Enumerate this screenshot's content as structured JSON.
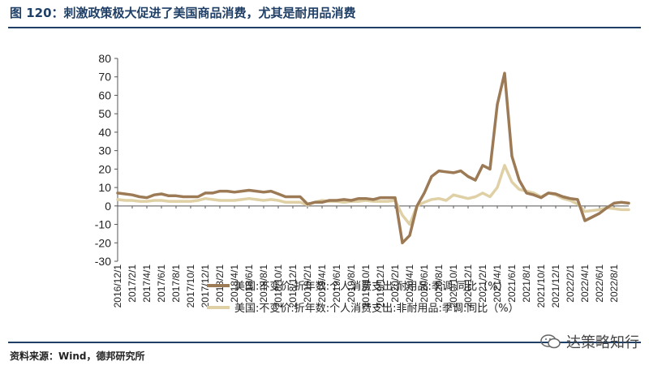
{
  "title": "图 120：刺激政策极大促进了美国商品消费，尤其是耐用品消费",
  "source": "资料来源：Wind，德邦研究所",
  "watermark": "达策略知行",
  "chart_data": {
    "type": "line",
    "ylim": [
      -30,
      80
    ],
    "yticks": [
      -30,
      -20,
      -10,
      0,
      10,
      20,
      30,
      40,
      50,
      60,
      70,
      80
    ],
    "xlim": [
      "2016-12",
      "2022-10"
    ],
    "xtick_labels": [
      "2016/12/1",
      "2017/2/1",
      "2017/4/1",
      "2017/6/1",
      "2017/8/1",
      "2017/10/1",
      "2017/12/1",
      "2018/2/1",
      "2018/4/1",
      "2018/6/1",
      "2018/8/1",
      "2018/10/1",
      "2018/12/1",
      "2019/2/1",
      "2019/4/1",
      "2019/6/1",
      "2019/8/1",
      "2019/10/1",
      "2019/12/1",
      "2020/2/1",
      "2020/4/1",
      "2020/6/1",
      "2020/8/1",
      "2020/10/1",
      "2020/12/1",
      "2021/2/1",
      "2021/4/1",
      "2021/6/1",
      "2021/8/1",
      "2021/10/1",
      "2021/12/1",
      "2022/2/1",
      "2022/4/1",
      "2022/6/1",
      "2022/8/1"
    ],
    "legend_position": "bottom",
    "series": [
      {
        "name": "美国:不变价:折年数:个人消费支出:耐用品:季调:同比（%）",
        "color": "#9c7a56",
        "points": [
          [
            "2016-12",
            7
          ],
          [
            "2017-01",
            6.5
          ],
          [
            "2017-02",
            6
          ],
          [
            "2017-03",
            5
          ],
          [
            "2017-04",
            4.5
          ],
          [
            "2017-05",
            6
          ],
          [
            "2017-06",
            6.5
          ],
          [
            "2017-07",
            5.5
          ],
          [
            "2017-08",
            5.5
          ],
          [
            "2017-09",
            5
          ],
          [
            "2017-10",
            5
          ],
          [
            "2017-11",
            5
          ],
          [
            "2017-12",
            7
          ],
          [
            "2018-01",
            7
          ],
          [
            "2018-02",
            8
          ],
          [
            "2018-03",
            8
          ],
          [
            "2018-04",
            7.5
          ],
          [
            "2018-05",
            8
          ],
          [
            "2018-06",
            8.5
          ],
          [
            "2018-07",
            8
          ],
          [
            "2018-08",
            7.5
          ],
          [
            "2018-09",
            8
          ],
          [
            "2018-10",
            6.5
          ],
          [
            "2018-11",
            5
          ],
          [
            "2018-12",
            5
          ],
          [
            "2019-01",
            5
          ],
          [
            "2019-02",
            1
          ],
          [
            "2019-03",
            2
          ],
          [
            "2019-04",
            2
          ],
          [
            "2019-05",
            3
          ],
          [
            "2019-06",
            3
          ],
          [
            "2019-07",
            3.5
          ],
          [
            "2019-08",
            3
          ],
          [
            "2019-09",
            4
          ],
          [
            "2019-10",
            4
          ],
          [
            "2019-11",
            3.5
          ],
          [
            "2019-12",
            4.5
          ],
          [
            "2020-01",
            4.5
          ],
          [
            "2020-02",
            4.5
          ],
          [
            "2020-03",
            -20
          ],
          [
            "2020-04",
            -16
          ],
          [
            "2020-05",
            0
          ],
          [
            "2020-06",
            7
          ],
          [
            "2020-07",
            16
          ],
          [
            "2020-08",
            19
          ],
          [
            "2020-09",
            18.5
          ],
          [
            "2020-10",
            18
          ],
          [
            "2020-11",
            19
          ],
          [
            "2020-12",
            16
          ],
          [
            "2021-01",
            14
          ],
          [
            "2021-02",
            22
          ],
          [
            "2021-03",
            20
          ],
          [
            "2021-04",
            55
          ],
          [
            "2021-05",
            72
          ],
          [
            "2021-06",
            27
          ],
          [
            "2021-07",
            14
          ],
          [
            "2021-08",
            7
          ],
          [
            "2021-09",
            6
          ],
          [
            "2021-10",
            4.5
          ],
          [
            "2021-11",
            7
          ],
          [
            "2021-12",
            6.5
          ],
          [
            "2022-01",
            5
          ],
          [
            "2022-02",
            4
          ],
          [
            "2022-03",
            3.5
          ],
          [
            "2022-04",
            -8
          ],
          [
            "2022-05",
            -6
          ],
          [
            "2022-06",
            -4
          ],
          [
            "2022-07",
            -1
          ],
          [
            "2022-08",
            1.5
          ],
          [
            "2022-09",
            2
          ],
          [
            "2022-10",
            1.5
          ]
        ]
      },
      {
        "name": "美国:不变价:折年数:个人消费支出:非耐用品:季调:同比（%）",
        "color": "#dfd0a6",
        "points": [
          [
            "2016-12",
            3.5
          ],
          [
            "2017-01",
            3
          ],
          [
            "2017-02",
            3
          ],
          [
            "2017-03",
            2.5
          ],
          [
            "2017-04",
            2.5
          ],
          [
            "2017-05",
            3
          ],
          [
            "2017-06",
            3
          ],
          [
            "2017-07",
            2.5
          ],
          [
            "2017-08",
            2.5
          ],
          [
            "2017-09",
            2.5
          ],
          [
            "2017-10",
            2.5
          ],
          [
            "2017-11",
            3
          ],
          [
            "2017-12",
            4
          ],
          [
            "2018-01",
            3.5
          ],
          [
            "2018-02",
            3
          ],
          [
            "2018-03",
            3
          ],
          [
            "2018-04",
            3
          ],
          [
            "2018-05",
            3.5
          ],
          [
            "2018-06",
            4
          ],
          [
            "2018-07",
            3.5
          ],
          [
            "2018-08",
            3
          ],
          [
            "2018-09",
            3.5
          ],
          [
            "2018-10",
            3
          ],
          [
            "2018-11",
            2
          ],
          [
            "2018-12",
            2
          ],
          [
            "2019-01",
            2
          ],
          [
            "2019-02",
            0.5
          ],
          [
            "2019-03",
            2
          ],
          [
            "2019-04",
            3
          ],
          [
            "2019-05",
            2.5
          ],
          [
            "2019-06",
            2.5
          ],
          [
            "2019-07",
            2
          ],
          [
            "2019-08",
            2.5
          ],
          [
            "2019-09",
            2.5
          ],
          [
            "2019-10",
            3
          ],
          [
            "2019-11",
            2.5
          ],
          [
            "2019-12",
            2.5
          ],
          [
            "2020-01",
            2.5
          ],
          [
            "2020-02",
            3
          ],
          [
            "2020-03",
            -5
          ],
          [
            "2020-04",
            -10
          ],
          [
            "2020-05",
            0
          ],
          [
            "2020-06",
            2
          ],
          [
            "2020-07",
            3.5
          ],
          [
            "2020-08",
            4
          ],
          [
            "2020-09",
            3
          ],
          [
            "2020-10",
            6
          ],
          [
            "2020-11",
            5
          ],
          [
            "2020-12",
            4
          ],
          [
            "2021-01",
            5
          ],
          [
            "2021-02",
            7
          ],
          [
            "2021-03",
            5
          ],
          [
            "2021-04",
            10
          ],
          [
            "2021-05",
            22
          ],
          [
            "2021-06",
            13
          ],
          [
            "2021-07",
            9
          ],
          [
            "2021-08",
            8
          ],
          [
            "2021-09",
            7
          ],
          [
            "2021-10",
            5
          ],
          [
            "2021-11",
            7
          ],
          [
            "2021-12",
            6
          ],
          [
            "2022-01",
            4
          ],
          [
            "2022-02",
            3
          ],
          [
            "2022-03",
            1
          ],
          [
            "2022-04",
            -3
          ],
          [
            "2022-05",
            -2.5
          ],
          [
            "2022-06",
            -2
          ],
          [
            "2022-07",
            -1
          ],
          [
            "2022-08",
            -1.5
          ],
          [
            "2022-09",
            -2
          ],
          [
            "2022-10",
            -2
          ]
        ]
      }
    ]
  }
}
